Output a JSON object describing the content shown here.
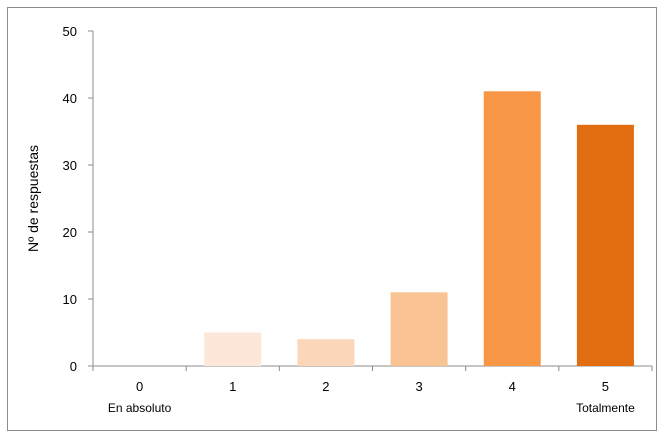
{
  "chart_data": {
    "type": "bar",
    "title": "",
    "xlabel": "",
    "ylabel": "Nº de respuestas",
    "ylim": [
      0,
      50
    ],
    "yticks": [
      0,
      10,
      20,
      30,
      40,
      50
    ],
    "grid": false,
    "legend": "none",
    "categories": [
      "0",
      "1",
      "2",
      "3",
      "4",
      "5"
    ],
    "category_sublabels": {
      "first": "En absoluto",
      "last": "Totalmente"
    },
    "values": [
      0,
      5,
      4,
      11,
      41,
      36
    ],
    "bar_colors": [
      "#fdf0e6",
      "#fde7d8",
      "#fbd6b9",
      "#fac393",
      "#f79746",
      "#e26d10"
    ],
    "axis_color": "#8c8c8c"
  }
}
